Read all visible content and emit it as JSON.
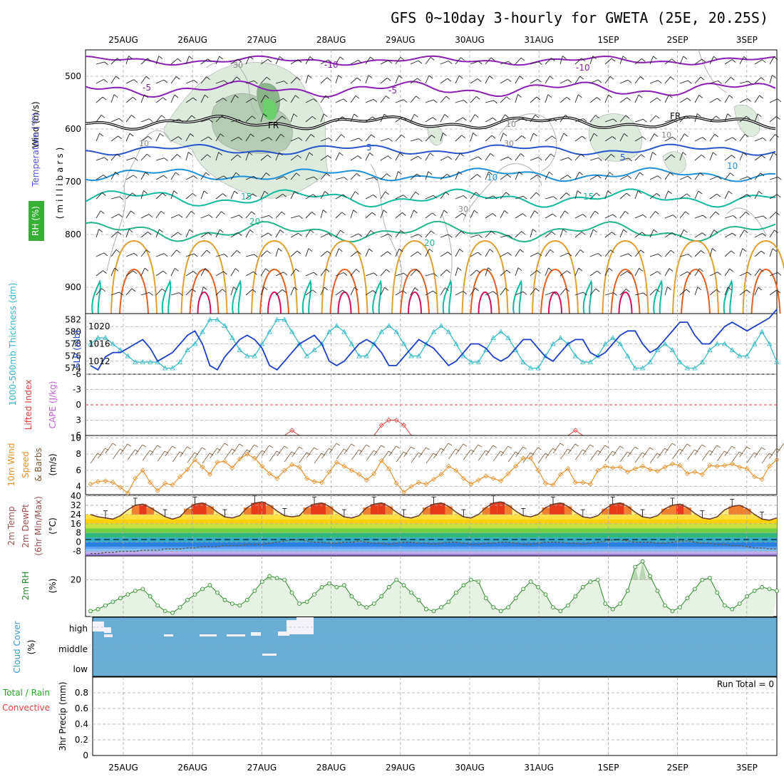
{
  "title": "GFS 0~10day 3-hourly for GWETA (25E, 20.25S)",
  "dates": [
    "25AUG",
    "26AUG",
    "27AUG",
    "28AUG",
    "29AUG",
    "30AUG",
    "31AUG",
    "1SEP",
    "2SEP",
    "3SEP"
  ],
  "colors": {
    "grid": "#aaaaaa",
    "temp_minus10": "#8a1fb3",
    "temp_minus5": "#8a1fb3",
    "freezing": "#000000",
    "temp_5": "#2855cc",
    "temp_10": "#1e90d8",
    "temp_15": "#10b8a0",
    "temp_20": "#22b48a",
    "warm_contour": "#e0a030",
    "hot_contour": "#e06020",
    "hottest_contour": "#d0105a",
    "rh_fill": "#cfe6cf",
    "slp": "#1a3ec8",
    "thickness": "#30b8c8",
    "lifted_index": "#e04040",
    "wind_speed": "#e8902a",
    "wind_barb": "#7a5a3a",
    "rh2m": "#2a8a2a",
    "cloud": "#6aaed6",
    "cloud_gap": "#f2f2f8"
  },
  "panels": {
    "upper": {
      "ylabel_wind": "Wind (m/s)",
      "ylabel_temp": "Temperature (°C)",
      "ylabel_rh": "RH (%)",
      "ylabel_pressure": "(millibars)",
      "yticks": [
        "500",
        "600",
        "700",
        "800",
        "900"
      ],
      "contour_labels": [
        "-10",
        "-5",
        "FR",
        "5",
        "10",
        "15",
        "20",
        "-10",
        "-5",
        "FR",
        "5",
        "10",
        "15",
        "20",
        "30",
        "30",
        "10",
        "10",
        "10",
        "30"
      ]
    },
    "slp": {
      "ylabel_thick": "1000-500mb Thickness (dm)",
      "ylabel_slp": "SLP (mb)",
      "left_ticks": [
        "582",
        "580",
        "578",
        "576",
        "574"
      ],
      "right_ticks": [
        "1020",
        "1016",
        "1012"
      ]
    },
    "cape": {
      "ylabel_li": "Lifted Index",
      "ylabel_cape": "CAPE (J/kg)",
      "yticks": [
        "-6",
        "-3",
        "0",
        "3",
        "6"
      ]
    },
    "wind10": {
      "ylabel_a": "10m Wind",
      "ylabel_b": "Speed",
      "ylabel_c": "& Barbs",
      "ylabel_d": "(m/s)",
      "yticks": [
        "10",
        "8",
        "6",
        "4"
      ]
    },
    "temp2m": {
      "ylabel_a": "2m Temp",
      "ylabel_b": "2m DewPt",
      "ylabel_c": "(6hr Min/Max)",
      "ylabel_d": "(°C)",
      "yticks": [
        "40",
        "32",
        "24",
        "16",
        "8",
        "0",
        "-8"
      ]
    },
    "rh2m": {
      "ylabel": "2m RH",
      "unit": "(%)",
      "yticks": [
        "20"
      ]
    },
    "cloud": {
      "ylabel": "Cloud Cover",
      "unit": "(%)",
      "levels": [
        "high",
        "middle",
        "low"
      ]
    },
    "precip": {
      "ylabel_a": "Total / Rain",
      "ylabel_b": "Convective",
      "ylabel_c": "3hr Precip (mm)",
      "yticks": [
        "0.8",
        "0.6",
        "0.4",
        "0.2",
        "0"
      ],
      "run_total": "Run Total = 0"
    }
  },
  "chart_data": [
    {
      "type": "line",
      "title": "2m RH",
      "ylabel": "(%)",
      "x_unit": "3-hourly steps from 24AUG 12Z",
      "values": [
        3,
        4,
        6,
        8,
        10,
        12,
        14,
        15,
        11,
        6,
        3,
        2,
        5,
        9,
        12,
        15,
        17,
        13,
        9,
        7,
        6,
        9,
        14,
        19,
        22,
        21,
        20,
        13,
        7,
        8,
        12,
        16,
        18,
        16,
        17,
        11,
        7,
        5,
        7,
        11,
        16,
        20,
        17,
        13,
        9,
        4,
        3,
        5,
        8,
        13,
        17,
        20,
        19,
        10,
        5,
        3,
        5,
        10,
        15,
        19,
        16,
        12,
        5,
        3,
        6,
        11,
        16,
        19,
        20,
        7,
        4,
        7,
        14,
        27,
        30,
        22,
        14,
        6,
        3,
        5,
        10,
        15,
        20,
        21,
        13,
        6,
        4,
        7,
        11,
        14,
        16,
        15,
        14
      ]
    },
    {
      "type": "line",
      "title": "SLP (mb)",
      "ylim": [
        1009,
        1023
      ],
      "values": [
        1011,
        1010,
        1013,
        1014,
        1014,
        1015,
        1016,
        1017,
        1015,
        1012,
        1013,
        1014,
        1016,
        1018,
        1019,
        1016,
        1011,
        1010,
        1013,
        1015,
        1017,
        1018,
        1017,
        1015,
        1011,
        1010,
        1012,
        1014,
        1016,
        1017,
        1018,
        1016,
        1012,
        1011,
        1012,
        1014,
        1016,
        1017,
        1016,
        1014,
        1011,
        1011,
        1013,
        1015,
        1017,
        1016,
        1015,
        1013,
        1011,
        1012,
        1014,
        1016,
        1016,
        1015,
        1013,
        1012,
        1013,
        1015,
        1017,
        1017,
        1015,
        1013,
        1012,
        1014,
        1016,
        1017,
        1017,
        1014,
        1013,
        1014,
        1016,
        1018,
        1019,
        1019,
        1016,
        1014,
        1015,
        1017,
        1019,
        1021,
        1021,
        1018,
        1016,
        1016,
        1018,
        1020,
        1021,
        1020,
        1019,
        1020,
        1021,
        1022,
        1024
      ]
    },
    {
      "type": "line",
      "title": "1000-500mb Thickness (dm)",
      "ylim": [
        573,
        583
      ],
      "values": [
        578,
        579,
        579,
        578,
        577,
        576,
        575,
        575,
        575,
        575,
        574,
        574,
        575,
        577,
        578,
        580,
        582,
        582,
        581,
        579,
        577,
        576,
        576,
        578,
        580,
        582,
        582,
        580,
        578,
        576,
        577,
        578,
        580,
        581,
        580,
        578,
        576,
        576,
        578,
        580,
        581,
        580,
        578,
        576,
        576,
        578,
        580,
        581,
        580,
        578,
        576,
        575,
        575,
        577,
        579,
        580,
        579,
        577,
        575,
        574,
        574,
        576,
        578,
        579,
        578,
        576,
        575,
        575,
        576,
        578,
        579,
        578,
        576,
        574,
        574,
        575,
        577,
        578,
        577,
        575,
        574,
        574,
        575,
        577,
        578,
        578,
        577,
        576,
        576,
        578,
        580,
        578,
        575
      ]
    },
    {
      "type": "line",
      "title": "10m Wind Speed (m/s)",
      "ylim": [
        3,
        10
      ],
      "values": [
        4.3,
        4.6,
        4.7,
        4.5,
        3.9,
        3.2,
        5.0,
        6.0,
        4.5,
        3.5,
        4.4,
        4.2,
        5.2,
        6.1,
        7.3,
        6.4,
        5.5,
        7.0,
        7.1,
        6.3,
        7.4,
        8.0,
        7.5,
        6.5,
        5.6,
        5.0,
        6.0,
        6.7,
        6.4,
        5.0,
        4.6,
        4.5,
        5.8,
        7.0,
        6.5,
        6.0,
        5.5,
        4.8,
        5.6,
        7.2,
        6.2,
        4.4,
        3.3,
        4.0,
        4.5,
        4.3,
        4.9,
        5.5,
        6.5,
        6.0,
        5.0,
        4.3,
        4.8,
        5.3,
        5.0,
        4.7,
        5.6,
        6.5,
        7.5,
        7.5,
        6.0,
        4.4,
        4.2,
        5.5,
        6.2,
        4.5,
        4.5,
        4.3,
        6.0,
        6.5,
        6.3,
        6.4,
        5.8,
        6.2,
        6.5,
        6.1,
        5.9,
        6.4,
        6.8,
        6.6,
        5.6,
        5.8,
        5.5,
        6.6,
        6.5,
        6.6,
        6.8,
        6.4,
        6.2,
        5.2,
        4.9,
        6.5,
        7.3
      ]
    },
    {
      "type": "line",
      "title": "2m Temp (°C)",
      "ylim": [
        -12,
        40
      ],
      "values": [
        24,
        22,
        21,
        20,
        23,
        28,
        32,
        33,
        30,
        26,
        22,
        20,
        22,
        29,
        33,
        34,
        31,
        26,
        22,
        21,
        23,
        30,
        34,
        35,
        32,
        27,
        23,
        22,
        23,
        30,
        33,
        34,
        31,
        26,
        22,
        21,
        23,
        30,
        33,
        34,
        31,
        26,
        22,
        21,
        23,
        30,
        33,
        34,
        31,
        26,
        22,
        21,
        24,
        30,
        34,
        35,
        32,
        27,
        23,
        22,
        24,
        30,
        33,
        34,
        31,
        26,
        22,
        21,
        23,
        29,
        33,
        34,
        31,
        26,
        22,
        21,
        23,
        29,
        32,
        33,
        30,
        25,
        21,
        20,
        22,
        28,
        31,
        32,
        29,
        24,
        20,
        19,
        21
      ]
    },
    {
      "type": "line",
      "title": "2m DewPt (°C)",
      "ylim": [
        -12,
        40
      ],
      "values": [
        -10,
        -10,
        -9,
        -9,
        -8,
        -8,
        -8,
        -7,
        -7,
        -7,
        -6,
        -6,
        -6,
        -5,
        -5,
        -4,
        -4,
        -4,
        -3,
        -3,
        -3,
        -2,
        -2,
        -2,
        -1,
        0,
        1,
        2,
        2,
        1,
        0,
        0,
        -1,
        -1,
        0,
        0,
        1,
        0,
        -1,
        -1,
        -2,
        -1,
        0,
        0,
        -1,
        -1,
        -2,
        -1,
        0,
        0,
        -1,
        -2,
        -2,
        -1,
        -1,
        0,
        0,
        -1,
        -2,
        -2,
        -1,
        0,
        0,
        0,
        -1,
        -1,
        -2,
        -1,
        0,
        1,
        2,
        2,
        1,
        0,
        0,
        0,
        -1,
        -1,
        0,
        1,
        1,
        0,
        -1,
        -1,
        -2,
        -2,
        -3,
        -3,
        -4,
        -5,
        -5,
        -6,
        -6
      ]
    },
    {
      "type": "line",
      "title": "Lifted Index",
      "ylim": [
        -6,
        6
      ],
      "values": [
        6,
        6,
        6,
        6,
        6,
        6,
        6,
        6,
        6,
        6,
        6,
        6,
        6,
        6,
        6,
        6,
        6,
        6,
        6,
        6,
        6,
        6,
        6,
        6,
        6,
        6,
        6,
        5,
        6,
        6,
        6,
        6,
        6,
        6,
        6,
        6,
        6,
        6,
        6,
        4,
        3,
        3,
        4,
        6,
        6,
        6,
        6,
        6,
        6,
        6,
        6,
        6,
        6,
        6,
        6,
        6,
        6,
        6,
        6,
        6,
        6,
        6,
        6,
        6,
        6,
        5,
        6,
        6,
        6,
        6,
        6,
        6,
        6,
        6,
        6,
        6,
        6,
        6,
        6,
        6,
        6,
        6,
        6,
        6,
        6,
        6,
        6,
        6,
        6,
        6,
        6,
        6,
        6
      ]
    }
  ]
}
